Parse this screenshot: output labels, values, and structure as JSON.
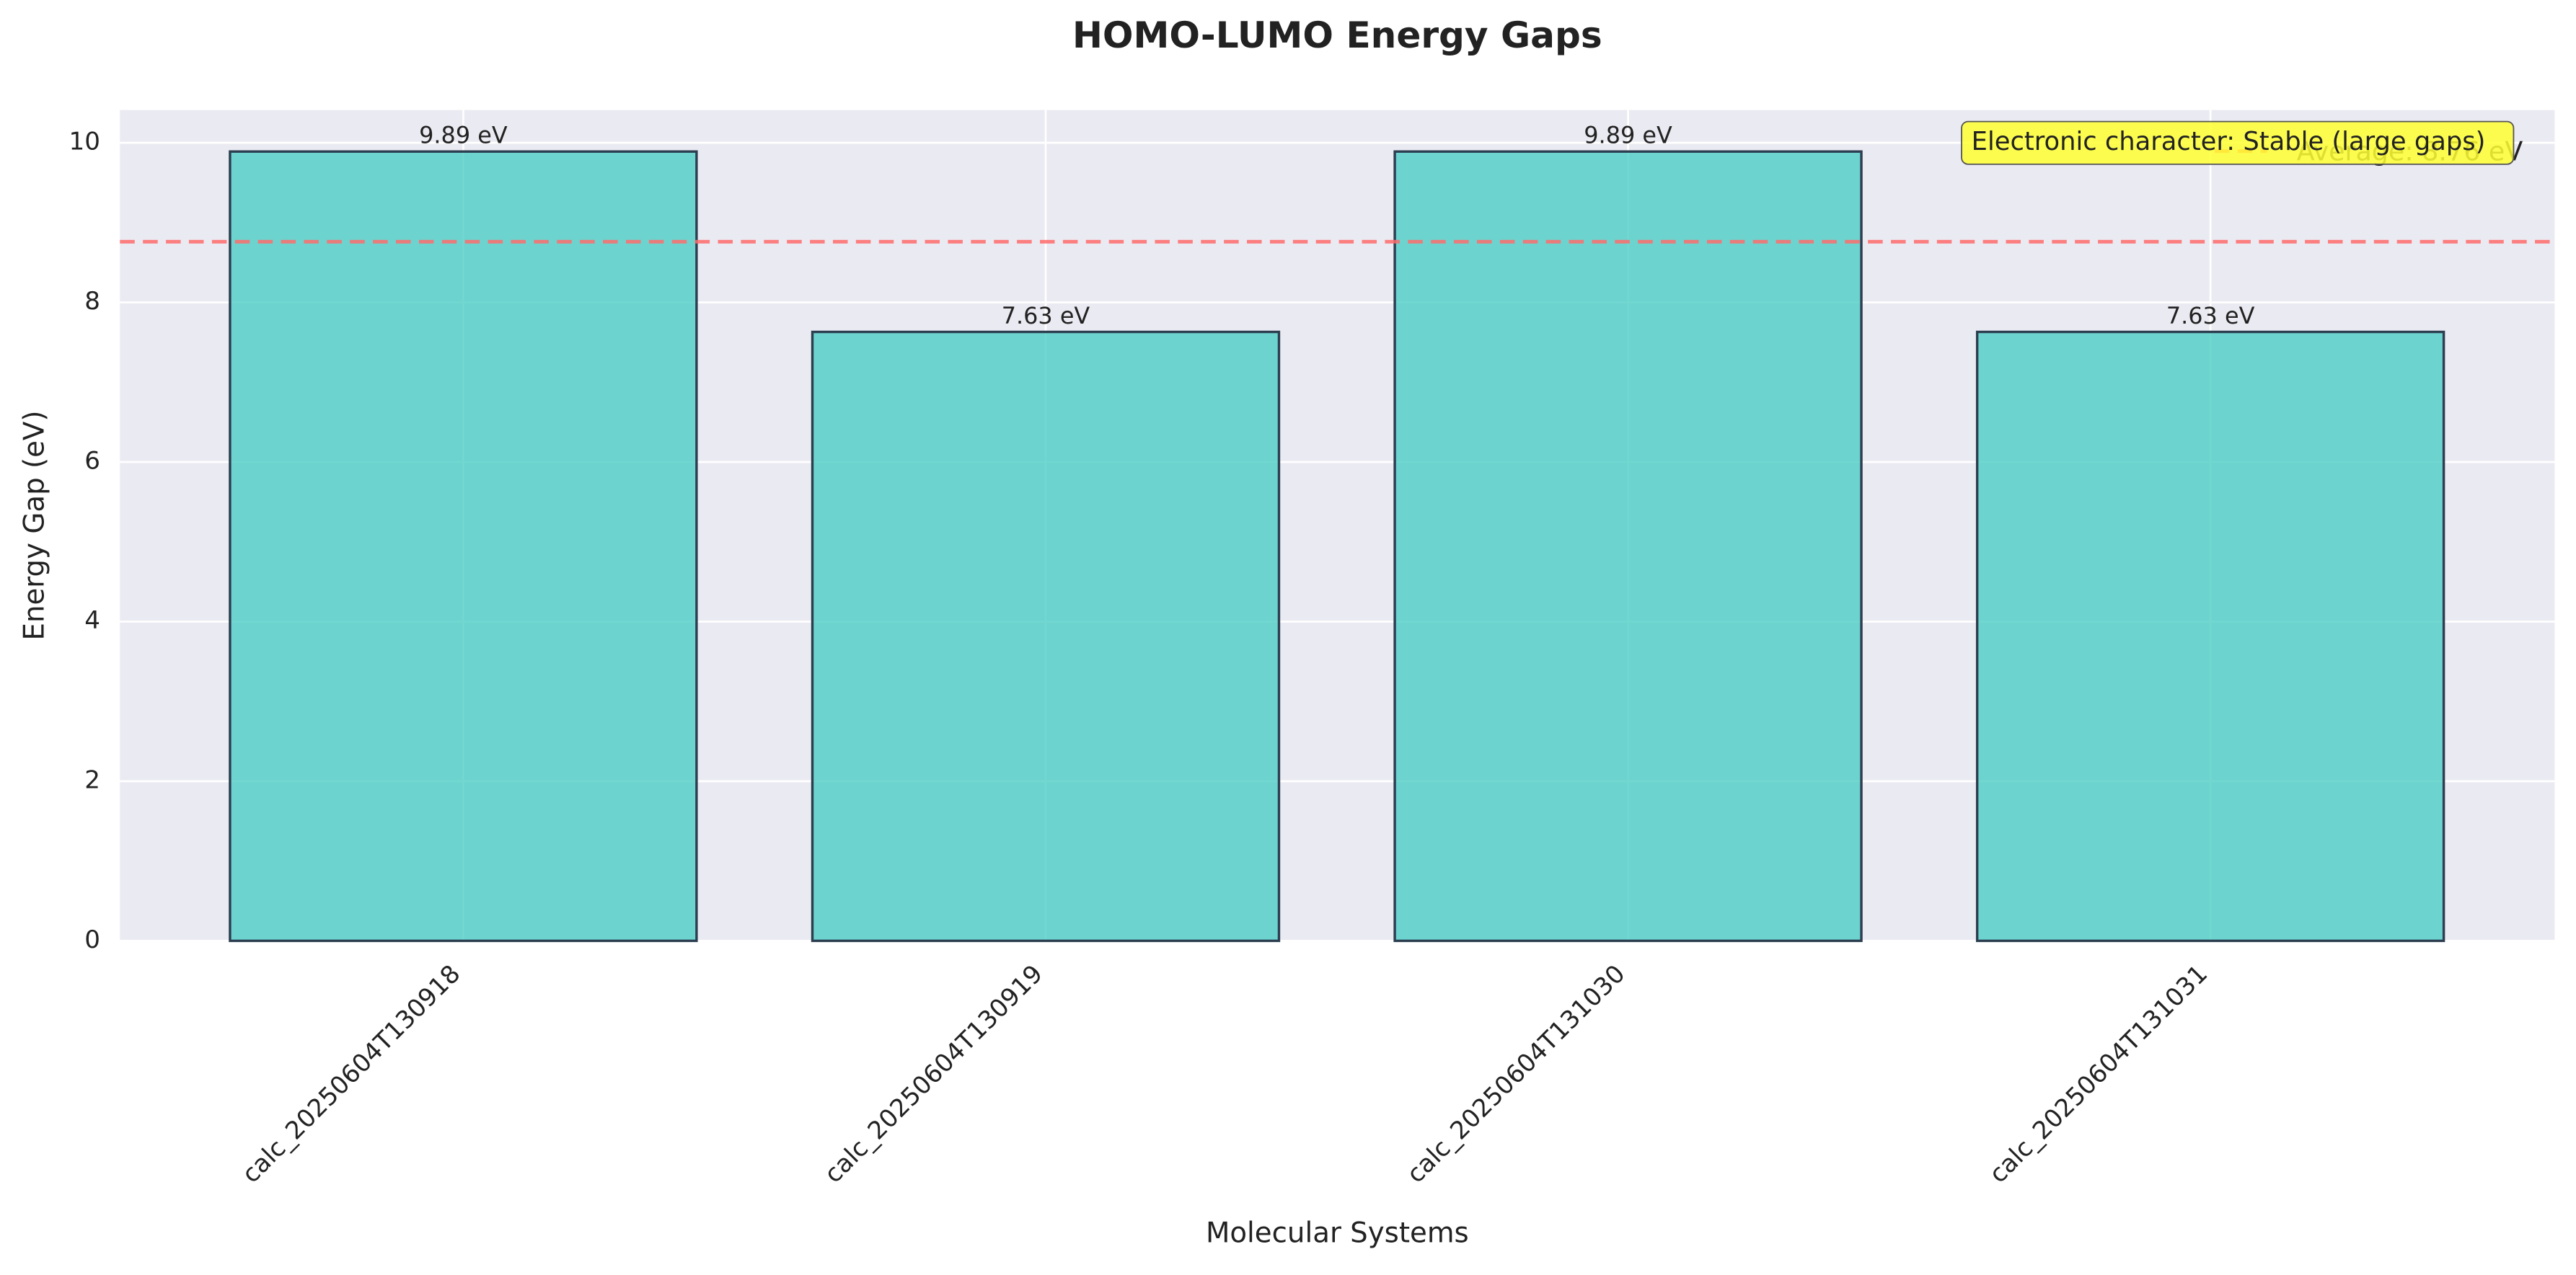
{
  "chart_data": {
    "type": "bar",
    "title": "HOMO-LUMO Energy Gaps",
    "xlabel": "Molecular Systems",
    "ylabel": "Energy Gap (eV)",
    "categories": [
      "calc_20250604T130918",
      "calc_20250604T130919",
      "calc_20250604T131030",
      "calc_20250604T131031"
    ],
    "values": [
      9.89,
      7.63,
      9.89,
      7.63
    ],
    "value_labels": [
      "9.89 eV",
      "7.63 eV",
      "9.89 eV",
      "7.63 eV"
    ],
    "color": "#4ecdc4",
    "edge_color": "#2c3e50",
    "ylim": [
      0,
      10.41
    ],
    "yticks": [
      0,
      2,
      4,
      6,
      8,
      10
    ],
    "grid": true,
    "average": {
      "value": 8.76,
      "label": "Average: 8.76 eV",
      "color": "#ff6b6b"
    },
    "legend_position": "upper right",
    "annotation": "Electronic character: Stable (large gaps)"
  }
}
